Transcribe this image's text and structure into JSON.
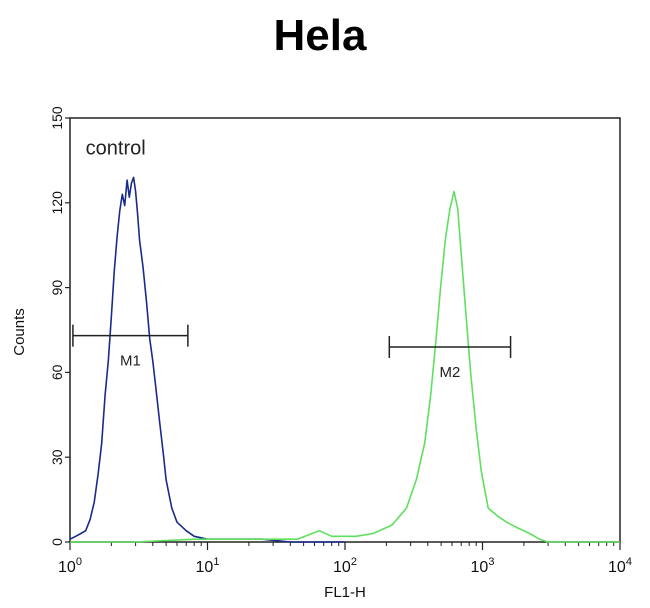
{
  "chart_data": {
    "type": "line",
    "title": "Hela",
    "xlabel": "FL1-H",
    "ylabel": "Counts",
    "x_scale": "log",
    "xlim": [
      1,
      10000
    ],
    "ylim": [
      0,
      150
    ],
    "grid": false,
    "x_ticks": [
      {
        "value": 1,
        "base": "10",
        "exp": "0"
      },
      {
        "value": 10,
        "base": "10",
        "exp": "1"
      },
      {
        "value": 100,
        "base": "10",
        "exp": "2"
      },
      {
        "value": 1000,
        "base": "10",
        "exp": "3"
      },
      {
        "value": 10000,
        "base": "10",
        "exp": "4"
      }
    ],
    "y_ticks": [
      0,
      30,
      60,
      90,
      120,
      150
    ],
    "annotations": [
      {
        "text": "control",
        "x": 1.3,
        "y": 137
      }
    ],
    "markers": [
      {
        "label": "M1",
        "x_start": 1.05,
        "x_end": 7.2,
        "y": 73
      },
      {
        "label": "M2",
        "x_start": 210,
        "x_end": 1600,
        "y": 69
      }
    ],
    "series": [
      {
        "color": "#1a2a8c",
        "points": [
          [
            1.0,
            1
          ],
          [
            1.1,
            2
          ],
          [
            1.2,
            3
          ],
          [
            1.3,
            4
          ],
          [
            1.4,
            8
          ],
          [
            1.5,
            14
          ],
          [
            1.6,
            24
          ],
          [
            1.7,
            35
          ],
          [
            1.8,
            52
          ],
          [
            1.9,
            64
          ],
          [
            2.0,
            80
          ],
          [
            2.1,
            96
          ],
          [
            2.2,
            108
          ],
          [
            2.3,
            117
          ],
          [
            2.4,
            123
          ],
          [
            2.5,
            119
          ],
          [
            2.6,
            128
          ],
          [
            2.7,
            122
          ],
          [
            2.8,
            127
          ],
          [
            2.9,
            129
          ],
          [
            3.0,
            124
          ],
          [
            3.1,
            116
          ],
          [
            3.2,
            107
          ],
          [
            3.4,
            97
          ],
          [
            3.6,
            85
          ],
          [
            3.8,
            72
          ],
          [
            4.0,
            64
          ],
          [
            4.2,
            55
          ],
          [
            4.5,
            42
          ],
          [
            4.8,
            30
          ],
          [
            5.0,
            22
          ],
          [
            5.5,
            12
          ],
          [
            6.0,
            7
          ],
          [
            7.0,
            4
          ],
          [
            8.0,
            2
          ],
          [
            10,
            1
          ],
          [
            15,
            1
          ],
          [
            25,
            1
          ],
          [
            40,
            0
          ],
          [
            60,
            0
          ],
          [
            100,
            0
          ]
        ]
      },
      {
        "color": "#5ee05e",
        "points": [
          [
            1.0,
            0
          ],
          [
            3,
            0
          ],
          [
            8,
            1
          ],
          [
            20,
            1
          ],
          [
            45,
            1
          ],
          [
            65,
            4
          ],
          [
            80,
            2
          ],
          [
            120,
            2
          ],
          [
            160,
            3
          ],
          [
            220,
            6
          ],
          [
            280,
            12
          ],
          [
            330,
            22
          ],
          [
            380,
            35
          ],
          [
            420,
            52
          ],
          [
            460,
            72
          ],
          [
            500,
            92
          ],
          [
            540,
            108
          ],
          [
            580,
            118
          ],
          [
            620,
            124
          ],
          [
            660,
            118
          ],
          [
            700,
            102
          ],
          [
            760,
            80
          ],
          [
            820,
            60
          ],
          [
            900,
            40
          ],
          [
            980,
            25
          ],
          [
            1100,
            12
          ],
          [
            1300,
            9
          ],
          [
            1500,
            7
          ],
          [
            1800,
            5
          ],
          [
            2200,
            3
          ],
          [
            2600,
            1
          ],
          [
            3000,
            0
          ],
          [
            5000,
            0
          ],
          [
            10000,
            0
          ]
        ]
      }
    ]
  }
}
